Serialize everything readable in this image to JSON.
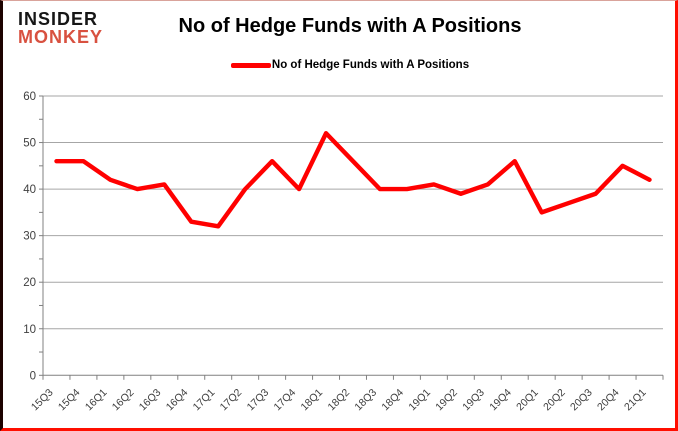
{
  "logo": {
    "line1": "INSIDER",
    "line2": "MONKEY"
  },
  "header": {
    "title": "No of Hedge Funds with A Positions"
  },
  "legend": {
    "label": "No of Hedge Funds with A Positions"
  },
  "colors": {
    "series": "#ff0000",
    "gridline": "#a6a6a6",
    "axis_line": "#808080",
    "axis_text": "#404040",
    "logo_insider": "#161616",
    "logo_monkey": "#d85140",
    "border": "#ff0e00"
  },
  "chart_data": {
    "type": "line",
    "title": "No of Hedge Funds with A Positions",
    "categories": [
      "15Q3",
      "15Q4",
      "16Q1",
      "16Q2",
      "16Q3",
      "16Q4",
      "17Q1",
      "17Q2",
      "17Q3",
      "17Q4",
      "18Q1",
      "18Q2",
      "18Q3",
      "18Q4",
      "19Q1",
      "19Q2",
      "19Q3",
      "19Q4",
      "20Q1",
      "20Q2",
      "20Q3",
      "20Q4",
      "21Q1"
    ],
    "series": [
      {
        "name": "No of Hedge Funds with A Positions",
        "color": "#ff0000",
        "values": [
          46,
          46,
          42,
          40,
          41,
          33,
          32,
          40,
          46,
          40,
          52,
          46,
          40,
          40,
          41,
          39,
          41,
          46,
          35,
          37,
          39,
          45,
          42
        ]
      }
    ],
    "xlabel": "",
    "ylabel": "",
    "ylim": [
      0,
      60
    ],
    "yticks": [
      0,
      10,
      20,
      30,
      40,
      50,
      60
    ],
    "grid": true,
    "legend_position": "top"
  }
}
